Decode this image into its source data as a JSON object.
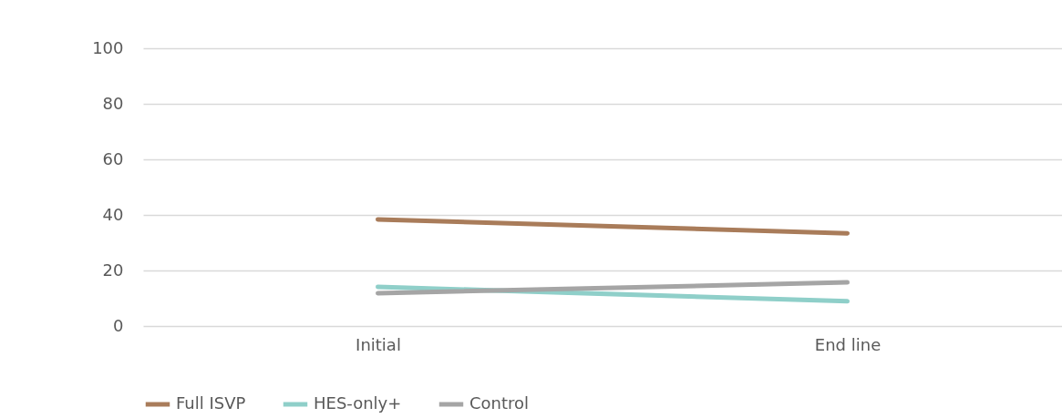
{
  "chart_data": {
    "type": "line",
    "categories": [
      "Initial",
      "End line"
    ],
    "series": [
      {
        "name": "Full ISVP",
        "color": "#a97c5a",
        "values": [
          38.4,
          33.4
        ]
      },
      {
        "name": "HES-only+",
        "color": "#8fcfc9",
        "values": [
          14.1,
          8.9
        ]
      },
      {
        "name": "Control",
        "color": "#a5a5a5",
        "values": [
          11.8,
          15.7
        ]
      }
    ],
    "ylim": [
      0,
      100
    ],
    "yticks": [
      0,
      20,
      40,
      60,
      80,
      100
    ],
    "grid": "y",
    "legend": "bottom",
    "marker": "none",
    "line_style": "solid"
  }
}
